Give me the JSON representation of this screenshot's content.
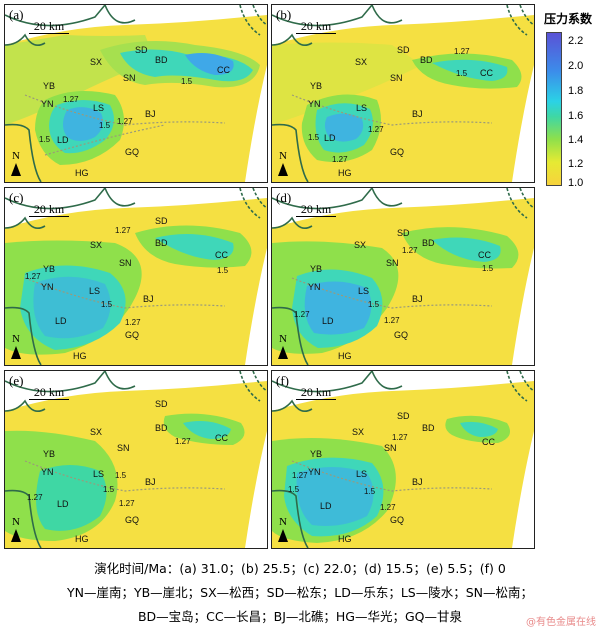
{
  "colorbar": {
    "title": "压力系数",
    "ticks": [
      "2.2",
      "2.0",
      "1.8",
      "1.6",
      "1.4",
      "1.2",
      "1.0"
    ]
  },
  "scale_label": "20 km",
  "north_label": "N",
  "panels": [
    {
      "label": "(a)",
      "sites": {
        "SD": "SD",
        "SX": "SX",
        "BD": "BD",
        "CC": "CC",
        "SN": "SN",
        "YB": "YB",
        "YN": "YN",
        "LS": "LS",
        "BJ": "BJ",
        "LD": "LD",
        "GQ": "GQ",
        "HG": "HG"
      },
      "contours": [
        "1.27",
        "1.5",
        "1.27",
        "1.5",
        "1.5"
      ]
    },
    {
      "label": "(b)",
      "sites": {
        "SD": "SD",
        "SX": "SX",
        "BD": "BD",
        "CC": "CC",
        "SN": "SN",
        "YB": "YB",
        "YN": "YN",
        "LS": "LS",
        "BJ": "BJ",
        "LD": "LD",
        "GQ": "GQ",
        "HG": "HG"
      },
      "contours": [
        "1.27",
        "1.5",
        "1.27",
        "1.5",
        "1.27"
      ]
    },
    {
      "label": "(c)",
      "sites": {
        "SD": "SD",
        "SX": "SX",
        "BD": "BD",
        "CC": "CC",
        "SN": "SN",
        "YB": "YB",
        "YN": "YN",
        "LS": "LS",
        "BJ": "BJ",
        "LD": "LD",
        "GQ": "GQ",
        "HG": "HG"
      },
      "contours": [
        "1.27",
        "1.27",
        "1.5",
        "1.5",
        "1.27"
      ]
    },
    {
      "label": "(d)",
      "sites": {
        "SD": "SD",
        "SX": "SX",
        "BD": "BD",
        "CC": "CC",
        "SN": "SN",
        "YB": "YB",
        "YN": "YN",
        "LS": "LS",
        "BJ": "BJ",
        "LD": "LD",
        "GQ": "GQ",
        "HG": "HG"
      },
      "contours": [
        "1.27",
        "1.5",
        "1.27",
        "1.5",
        "1.27"
      ]
    },
    {
      "label": "(e)",
      "sites": {
        "SD": "SD",
        "SX": "SX",
        "BD": "BD",
        "CC": "CC",
        "SN": "SN",
        "YB": "YB",
        "YN": "YN",
        "LS": "LS",
        "BJ": "BJ",
        "LD": "LD",
        "GQ": "GQ",
        "HG": "HG"
      },
      "contours": [
        "1.27",
        "1.27",
        "1.5",
        "1.5",
        "1.27"
      ]
    },
    {
      "label": "(f)",
      "sites": {
        "SD": "SD",
        "SX": "SX",
        "BD": "BD",
        "CC": "CC",
        "SN": "SN",
        "YB": "YB",
        "YN": "YN",
        "LS": "LS",
        "BJ": "BJ",
        "LD": "LD",
        "GQ": "GQ",
        "HG": "HG"
      },
      "contours": [
        "1.27",
        "1.27",
        "1.5",
        "1.5",
        "1.27"
      ]
    }
  ],
  "caption": {
    "line1": "演化时间/Ma：(a) 31.0；(b) 25.5；(c) 22.0；(d) 15.5；(e) 5.5；(f) 0",
    "line2": "YN—崖南；YB—崖北；SX—松西；SD—松东；LD—乐东；LS—陵水；SN—松南；",
    "line3": "BD—宝岛；CC—长昌；BJ—北礁；HG—华光；GQ—甘泉"
  },
  "watermark": "@有色金属在线"
}
